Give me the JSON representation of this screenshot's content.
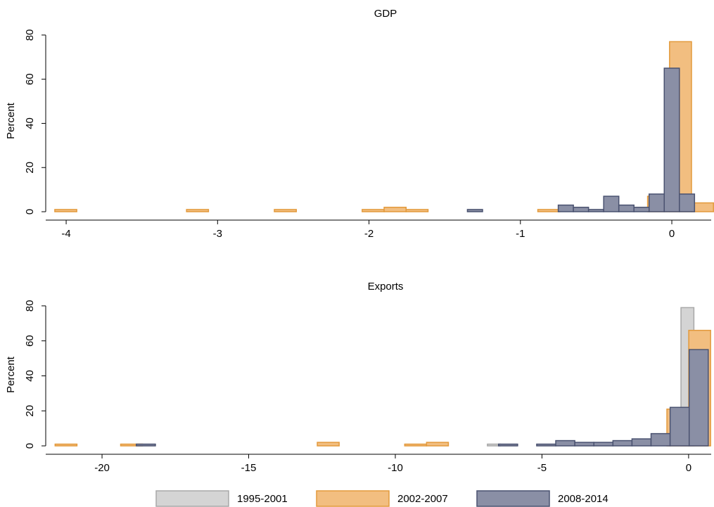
{
  "chart_data": [
    {
      "type": "histogram",
      "title": "GDP",
      "ylabel": "Percent",
      "xlim": [
        -4.135,
        0.26
      ],
      "xticks": [
        -4,
        -3,
        -2,
        -1,
        0
      ],
      "ylim": [
        -3.8,
        86
      ],
      "yticks": [
        0,
        20,
        40,
        60,
        80
      ],
      "grid": false,
      "series": [
        {
          "name": "2002-2007",
          "color": "#f2be80",
          "edge": "#e39a3c",
          "bins": [
            -4.075,
            -3.93,
            -3.785,
            -3.64,
            -3.495,
            -3.35,
            -3.205,
            -3.06,
            -2.915,
            -2.77,
            -2.625,
            -2.48,
            -2.335,
            -2.19,
            -2.045,
            -1.9,
            -1.755,
            -1.61,
            -1.465,
            -1.32,
            -1.175,
            -1.03,
            -0.885,
            -0.74,
            -0.595,
            -0.45,
            -0.305,
            -0.16,
            -0.015,
            0.13,
            0.275
          ],
          "values": [
            1,
            0,
            0,
            0,
            0,
            0,
            1,
            0,
            0,
            0,
            1,
            0,
            0,
            0,
            1,
            2,
            1,
            0,
            0,
            0,
            0,
            0,
            1,
            0,
            0,
            0,
            0,
            7,
            77,
            4
          ]
        },
        {
          "name": "2008-2014",
          "color": "#8a8fa5",
          "edge": "#4a5270",
          "bins": [
            -1.35,
            -1.25,
            -1.15,
            -1.05,
            -0.95,
            -0.85,
            -0.75,
            -0.65,
            -0.55,
            -0.45,
            -0.35,
            -0.25,
            -0.15,
            -0.05,
            0.05,
            0.15
          ],
          "values": [
            1,
            0,
            0,
            0,
            0,
            0,
            3,
            2,
            1,
            7,
            3,
            2,
            8,
            65,
            8
          ]
        }
      ]
    },
    {
      "type": "histogram",
      "title": "Exports",
      "ylabel": "Percent",
      "xlim": [
        -21.92,
        0.77
      ],
      "xticks": [
        -20,
        -15,
        -10,
        -5,
        0
      ],
      "ylim": [
        -4.8,
        86
      ],
      "yticks": [
        0,
        20,
        40,
        60,
        80
      ],
      "grid": false,
      "series": [
        {
          "name": "1995-2001",
          "color": "#d4d4d4",
          "edge": "#a8a8a8",
          "bins": [
            -6.86,
            -6.42,
            -5.98,
            -5.54,
            -5.1,
            -4.66,
            -4.22,
            -3.78,
            -3.34,
            -2.9,
            -2.46,
            -2.02,
            -1.58,
            -1.14,
            -0.7,
            -0.26,
            0.18
          ],
          "values": [
            1,
            0,
            0,
            0,
            0,
            0,
            0,
            0,
            0,
            0,
            0,
            0,
            0,
            0,
            0,
            79
          ]
        },
        {
          "name": "2002-2007",
          "color": "#f2be80",
          "edge": "#e39a3c",
          "bins": [
            -21.6,
            -20.855,
            -20.11,
            -19.365,
            -18.62,
            -17.875,
            -17.13,
            -16.385,
            -15.64,
            -14.895,
            -14.15,
            -13.405,
            -12.66,
            -11.915,
            -11.17,
            -10.425,
            -9.68,
            -8.935,
            -8.19,
            -7.445,
            -6.7,
            -5.955,
            -5.21,
            -4.465,
            -3.72,
            -2.975,
            -2.23,
            -1.485,
            -0.74,
            0.005,
            0.75
          ],
          "values": [
            1,
            0,
            0,
            1,
            0,
            0,
            0,
            0,
            0,
            0,
            0,
            0,
            2,
            0,
            0,
            0,
            1,
            2,
            0,
            0,
            0,
            0,
            0,
            0,
            0,
            0,
            0,
            0,
            21,
            66
          ]
        },
        {
          "name": "2008-2014",
          "color": "#8a8fa5",
          "edge": "#4a5270",
          "bins": [
            -18.83,
            -18.18,
            -17.53,
            -16.88,
            -16.23,
            -15.58,
            -14.93,
            -14.28,
            -13.63,
            -12.98,
            -12.33,
            -11.68,
            -11.03,
            -10.38,
            -9.73,
            -9.08,
            -8.43,
            -7.78,
            -7.13,
            -6.48,
            -5.83,
            -5.18,
            -4.53,
            -3.88,
            -3.23,
            -2.58,
            -1.93,
            -1.28,
            -0.63,
            0.02,
            0.67
          ],
          "values": [
            1,
            0,
            0,
            0,
            0,
            0,
            0,
            0,
            0,
            0,
            0,
            0,
            0,
            0,
            0,
            0,
            0,
            0,
            0,
            1,
            0,
            1,
            3,
            2,
            2,
            3,
            4,
            7,
            22,
            55
          ]
        }
      ]
    }
  ]
}
